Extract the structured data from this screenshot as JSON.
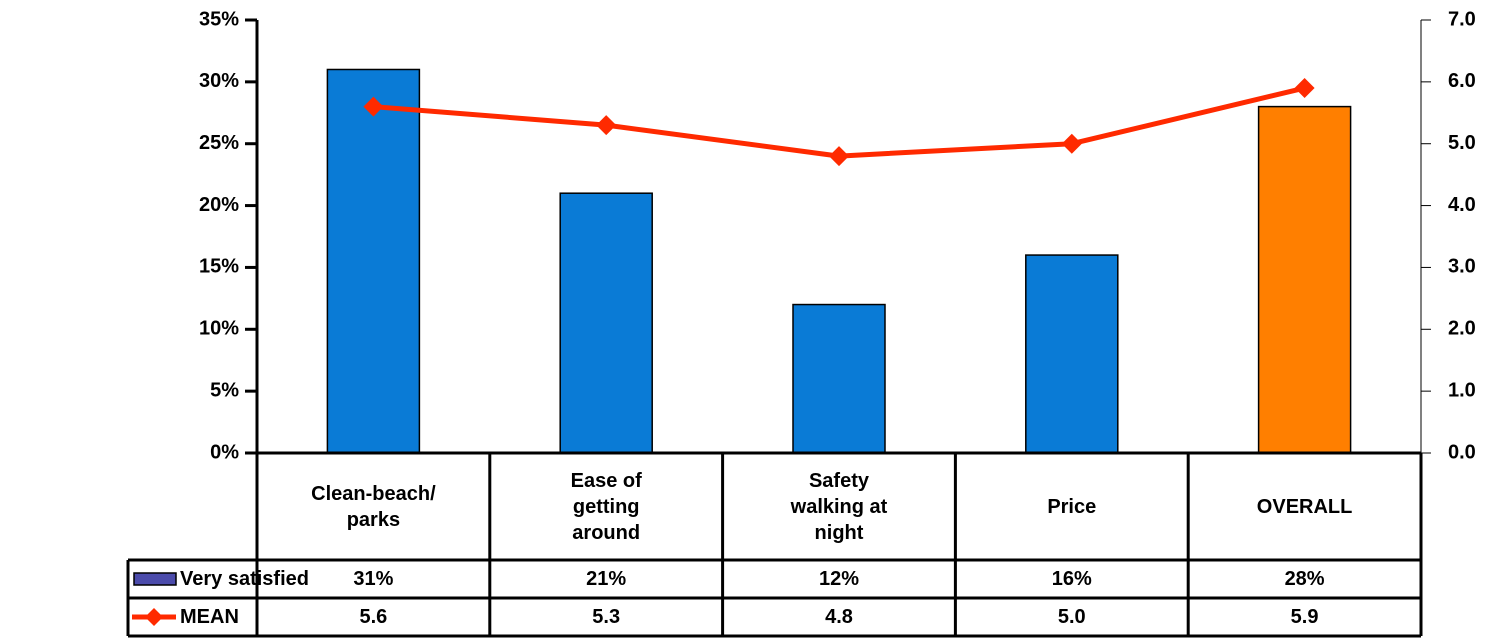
{
  "chart_data": {
    "type": "bar",
    "categories": [
      "Clean-beach/\nparks",
      "Ease of\ngetting\naround",
      "Safety\nwalking at\nnight",
      "Price",
      "OVERALL"
    ],
    "series": [
      {
        "name": "Very satisfied",
        "type": "bar",
        "color": "#4b4bab",
        "colors": [
          "#0a7bd6",
          "#0a7bd6",
          "#0a7bd6",
          "#0a7bd6",
          "#ff7f00"
        ],
        "values": [
          31,
          21,
          12,
          16,
          28
        ],
        "value_labels": [
          "31%",
          "21%",
          "12%",
          "16%",
          "28%"
        ]
      },
      {
        "name": "MEAN",
        "type": "line",
        "axis": "y2",
        "color": "#ff2a00",
        "values": [
          5.6,
          5.3,
          4.8,
          5.0,
          5.9
        ],
        "value_labels": [
          "5.6",
          "5.3",
          "4.8",
          "5.0",
          "5.9"
        ]
      }
    ],
    "ylim": [
      0,
      35
    ],
    "yticks": [
      {
        "value": 0,
        "label": "0%"
      },
      {
        "value": 5,
        "label": "5%"
      },
      {
        "value": 10,
        "label": "10%"
      },
      {
        "value": 15,
        "label": "15%"
      },
      {
        "value": 20,
        "label": "20%"
      },
      {
        "value": 25,
        "label": "25%"
      },
      {
        "value": 30,
        "label": "30%"
      },
      {
        "value": 35,
        "label": "35%"
      }
    ],
    "y2lim": [
      0,
      7
    ],
    "y2ticks": [
      {
        "value": 0,
        "label": "0.0"
      },
      {
        "value": 1,
        "label": "1.0"
      },
      {
        "value": 2,
        "label": "2.0"
      },
      {
        "value": 3,
        "label": "3.0"
      },
      {
        "value": 4,
        "label": "4.0"
      },
      {
        "value": 5,
        "label": "5.0"
      },
      {
        "value": 6,
        "label": "6.0"
      },
      {
        "value": 7,
        "label": "7.0"
      }
    ],
    "grid": false,
    "data_table": true
  }
}
